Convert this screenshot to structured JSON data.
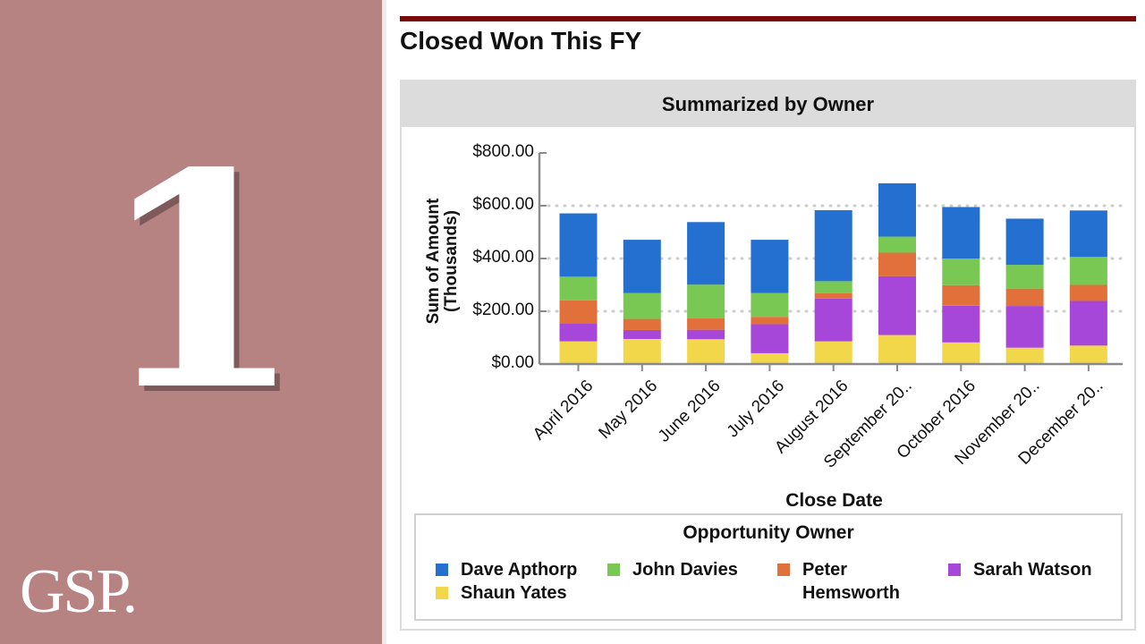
{
  "side": {
    "number": "1",
    "logo": "GSP."
  },
  "header": {
    "title": "Closed Won This FY"
  },
  "card": {
    "title": "Summarized by Owner"
  },
  "chart_data": {
    "type": "bar",
    "stacked": true,
    "title": "Summarized by Owner",
    "xlabel": "Close Date",
    "ylabel": "Sum of Amount",
    "ylabel2": "(Thousands)",
    "ylim": [
      0,
      800
    ],
    "yticks": [
      "$0.00",
      "$200.00",
      "$400.00",
      "$600.00",
      "$800.00"
    ],
    "ytick_values": [
      0,
      200,
      400,
      600,
      800
    ],
    "categories": [
      "April 2016",
      "May 2016",
      "June 2016",
      "July 2016",
      "August 2016",
      "September 20..",
      "October 2016",
      "November 20..",
      "December 20.."
    ],
    "series": [
      {
        "name": "Shaun Yates",
        "color": "#f2d74a",
        "values": [
          86,
          95,
          94,
          41,
          86,
          110,
          82,
          62,
          70
        ]
      },
      {
        "name": "Sarah Watson",
        "color": "#a647d9",
        "values": [
          68,
          34,
          36,
          110,
          162,
          223,
          139,
          158,
          169
        ]
      },
      {
        "name": "Peter Hemsworth",
        "color": "#e2703a",
        "values": [
          87,
          42,
          44,
          28,
          20,
          89,
          78,
          66,
          61
        ]
      },
      {
        "name": "John Davies",
        "color": "#78c853",
        "values": [
          90,
          98,
          127,
          90,
          46,
          61,
          101,
          90,
          106
        ]
      },
      {
        "name": "Dave Apthorp",
        "color": "#2370d0",
        "values": [
          240,
          202,
          237,
          202,
          269,
          202,
          195,
          175,
          176
        ]
      }
    ],
    "legend": {
      "title": "Opportunity Owner",
      "placement": "bottom",
      "order": [
        "Dave Apthorp",
        "John Davies",
        "Peter Hemsworth",
        "Sarah Watson",
        "Shaun Yates"
      ]
    },
    "grid": true
  }
}
